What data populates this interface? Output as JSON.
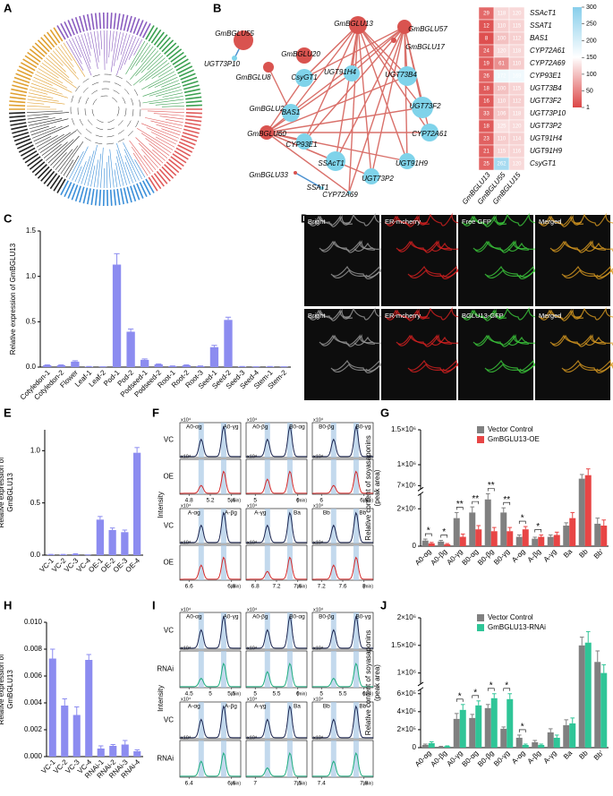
{
  "panels": [
    "A",
    "B",
    "C",
    "D",
    "E",
    "F",
    "G",
    "H",
    "I",
    "J"
  ],
  "network": {
    "nodes": [
      {
        "label": "GmBGLU55",
        "color": "#d9534f"
      },
      {
        "label": "UGT73P10",
        "color": "#7fd3ea"
      },
      {
        "label": "GmBGLU8",
        "color": "#d9534f"
      },
      {
        "label": "GmBGLU20",
        "color": "#d9534f"
      },
      {
        "label": "GmBGLU13",
        "color": "#d9534f"
      },
      {
        "label": "GmBGLU57",
        "color": "#d9534f"
      },
      {
        "label": "GmBGLU17",
        "color": "#d9534f"
      },
      {
        "label": "UGT91H4",
        "color": "#7fd3ea"
      },
      {
        "label": "CsyGT1",
        "color": "#7fd3ea"
      },
      {
        "label": "UGT73B4",
        "color": "#7fd3ea"
      },
      {
        "label": "GmBGLU2",
        "color": "#d9534f"
      },
      {
        "label": "BAS1",
        "color": "#7fd3ea"
      },
      {
        "label": "UGT73F2",
        "color": "#7fd3ea"
      },
      {
        "label": "GmBGLU60",
        "color": "#d9534f"
      },
      {
        "label": "CYP93E1",
        "color": "#7fd3ea"
      },
      {
        "label": "CYP72A61",
        "color": "#7fd3ea"
      },
      {
        "label": "GmBGLU33",
        "color": "#d9534f"
      },
      {
        "label": "SSAcT1",
        "color": "#7fd3ea"
      },
      {
        "label": "UGT91H9",
        "color": "#7fd3ea"
      },
      {
        "label": "SSAT1",
        "color": "#7fd3ea"
      },
      {
        "label": "UGT73P2",
        "color": "#7fd3ea"
      },
      {
        "label": "CYP72A69",
        "color": "#7fd3ea"
      }
    ]
  },
  "heatmap": {
    "rows": [
      "SSAcT1",
      "SSAT1",
      "BAS1",
      "CYP72A61",
      "CYP72A69",
      "CYP93E1",
      "UGT73B4",
      "UGT73F2",
      "UGT73P10",
      "UGT73P2",
      "UGT91H4",
      "UGT91H9",
      "CsyGT1"
    ],
    "columns": [
      "GmBGLU13",
      "GmBGLU55",
      "GmBGLU15"
    ],
    "values": [
      [
        29,
        118,
        120
      ],
      [
        12,
        110,
        115
      ],
      [
        8,
        100,
        112
      ],
      [
        24,
        120,
        118
      ],
      [
        19,
        61,
        110
      ],
      [
        26,
        172,
        169
      ],
      [
        18,
        100,
        115
      ],
      [
        16,
        110,
        112
      ],
      [
        33,
        106,
        118
      ],
      [
        18,
        125,
        120
      ],
      [
        23,
        110,
        114
      ],
      [
        21,
        115,
        116
      ],
      [
        25,
        262,
        120
      ]
    ],
    "colorbar_ticks": [
      300,
      250,
      200,
      150,
      100,
      50,
      1
    ]
  },
  "microscopy": {
    "rows": [
      [
        "Bright",
        "ER-mcherry",
        "Free GFP",
        "Merged"
      ],
      [
        "Bright",
        "ER-mcherry",
        "BGLU13-GFP",
        "Merged"
      ]
    ]
  },
  "chromatograms": [
    {
      "ylabel": "Intensity",
      "scale": "x10⁴",
      "unit": "(min)",
      "series": [
        {
          "name": "VC",
          "color": "#1b2550"
        },
        {
          "name": "OE",
          "color": "#d62a2a"
        }
      ],
      "blocks": [
        {
          "peaks": [
            "A0-αg",
            "A0-γg"
          ],
          "xticks": [
            "4.8",
            "5.2",
            "5.6"
          ]
        },
        {
          "peaks": [
            "A0-βg",
            "B0-αg"
          ],
          "xticks": [
            "5",
            "6"
          ]
        },
        {
          "peaks": [
            "B0-βg",
            "B0-γg"
          ],
          "xticks": [
            "6",
            "6.5"
          ]
        },
        {
          "peaks": [
            "A-αg",
            "A-βg"
          ],
          "xticks": [
            "6.6",
            "6.8"
          ]
        },
        {
          "peaks": [
            "A-γg",
            "Ba"
          ],
          "xticks": [
            "6.8",
            "7.2",
            "7.6"
          ]
        },
        {
          "peaks": [
            "Bb",
            "Bb'"
          ],
          "xticks": [
            "7.2",
            "7.6",
            "8"
          ]
        }
      ]
    },
    {
      "ylabel": "Intensity",
      "scale": "x10⁴",
      "unit": "(min)",
      "series": [
        {
          "name": "VC",
          "color": "#1b2550"
        },
        {
          "name": "RNAi",
          "color": "#1fae80"
        }
      ],
      "blocks": [
        {
          "peaks": [
            "A0-αg",
            "A0-γg"
          ],
          "xticks": [
            "4.5",
            "5",
            "5.5"
          ]
        },
        {
          "peaks": [
            "A0-βg",
            "B0-αg"
          ],
          "xticks": [
            "5",
            "5.5",
            "6"
          ]
        },
        {
          "peaks": [
            "B0-βg",
            "B0-γg"
          ],
          "xticks": [
            "5",
            "5.5",
            "6"
          ]
        },
        {
          "peaks": [
            "A-αg",
            "A-βg"
          ],
          "xticks": [
            "6.4",
            "6.6"
          ]
        },
        {
          "peaks": [
            "A-γg",
            "Ba"
          ],
          "xticks": [
            "7",
            "7.5"
          ]
        },
        {
          "peaks": [
            "Bb",
            "Bb'"
          ],
          "xticks": [
            "7.4",
            "7.8"
          ]
        }
      ]
    }
  ],
  "chart_data": [
    {
      "type": "bar",
      "ylabel": "Relative expression of GmBGLU13",
      "color": "#8c8cf0",
      "categories": [
        "Cotyledon-1",
        "Cotyledon-2",
        "Flower",
        "Leaf-1",
        "Leaf-2",
        "Pod-1",
        "Pod-2",
        "Podseed-1",
        "Podseed-2",
        "Root-1",
        "Root-2",
        "Root-3",
        "Seed-1",
        "Seed-2",
        "Seed-3",
        "Seed-4",
        "Stem-1",
        "Stem-2"
      ],
      "values": [
        0.02,
        0.02,
        0.06,
        0.005,
        0.003,
        1.13,
        0.39,
        0.08,
        0.03,
        0.01,
        0.02,
        0.01,
        0.22,
        0.52,
        0.005,
        0.003,
        0.005,
        0.003
      ],
      "errors": [
        0.005,
        0.005,
        0.01,
        0.002,
        0.001,
        0.12,
        0.03,
        0.01,
        0.005,
        0.003,
        0.005,
        0.003,
        0.02,
        0.03,
        0.002,
        0.001,
        0.002,
        0.001
      ],
      "ylim": [
        0,
        1.5
      ],
      "yticks": [
        {
          "value": 0,
          "label": "0.0"
        },
        0.5,
        {
          "value": 1,
          "label": "1.0"
        },
        1.5
      ]
    },
    {
      "type": "bar",
      "ylabel": [
        "Relative expression of",
        "GmBGLU13"
      ],
      "color": "#8c8cf0",
      "categories": [
        "VC-1",
        "VC-2",
        "VC-3",
        "VC-4",
        "OE-1",
        "OE-2",
        "OE-3",
        "OE-4"
      ],
      "values": [
        0.005,
        0.005,
        0.01,
        0.002,
        0.34,
        0.24,
        0.22,
        0.98
      ],
      "errors": [
        0.002,
        0.002,
        0.003,
        0.001,
        0.03,
        0.02,
        0.02,
        0.05
      ],
      "ylim": [
        0,
        1.2
      ],
      "yticks": [
        {
          "value": 0,
          "label": "0.0"
        },
        0.5,
        {
          "value": 1,
          "label": "1.0"
        }
      ]
    },
    {
      "type": "grouped_bar",
      "ylabel": [
        "Relative content of soyasaponins",
        "(peak area)"
      ],
      "legend": "upper right",
      "categories": [
        "A0-αg",
        "A0-βg",
        "A0-γg",
        "B0-αg",
        "B0-βg",
        "B0-γg",
        "A-αg",
        "A-βg",
        "A-γg",
        "Ba",
        "Bb",
        "Bb'"
      ],
      "series": [
        {
          "name": "Vector Control",
          "color": "#808080",
          "values": [
            30000,
            25000,
            150000,
            180000,
            250000,
            180000,
            50000,
            40000,
            50000,
            110000,
            800000,
            120000
          ],
          "errors": [
            8000,
            6000,
            30000,
            30000,
            30000,
            25000,
            10000,
            8000,
            10000,
            15000,
            60000,
            30000
          ]
        },
        {
          "name": "GmBGLU13-OE",
          "color": "#e84545",
          "values": [
            15000,
            10000,
            50000,
            90000,
            80000,
            80000,
            90000,
            50000,
            60000,
            150000,
            850000,
            110000
          ],
          "errors": [
            5000,
            4000,
            15000,
            20000,
            20000,
            20000,
            15000,
            10000,
            15000,
            30000,
            90000,
            30000
          ]
        }
      ],
      "significance": [
        "*",
        "*",
        "**",
        "**",
        "**",
        "**",
        "*",
        "*",
        null,
        null,
        null,
        null
      ],
      "ylim": [
        0,
        1500000
      ],
      "ybreak": [
        280000,
        650000
      ],
      "yticks": [
        0,
        {
          "value": 200000,
          "label": "2×10⁵"
        },
        {
          "value": 700000,
          "label": "7×10⁵"
        },
        {
          "value": 1000000,
          "label": "1×10⁶"
        },
        {
          "value": 1500000,
          "label": "1.5×10⁶"
        }
      ]
    },
    {
      "type": "bar",
      "ylabel": [
        "Relative expression of",
        "GmBGLU13"
      ],
      "color": "#8c8cf0",
      "categories": [
        "VC-1",
        "VC-2",
        "VC-3",
        "VC-4",
        "RNAi-1",
        "RNAi-2",
        "RNAi-3",
        "RNAi-4"
      ],
      "values": [
        0.0073,
        0.0038,
        0.0031,
        0.0072,
        0.0006,
        0.0008,
        0.0009,
        0.0004
      ],
      "errors": [
        0.0007,
        0.0005,
        0.0006,
        0.0004,
        0.0002,
        0.0001,
        0.0003,
        0.0001
      ],
      "ylim": [
        0,
        0.01
      ],
      "yticks": [
        {
          "value": 0,
          "label": "0.000"
        },
        {
          "value": 0.002,
          "label": "0.002"
        },
        {
          "value": 0.004,
          "label": "0.004"
        },
        {
          "value": 0.006,
          "label": "0.006"
        },
        {
          "value": 0.008,
          "label": "0.008"
        },
        {
          "value": 0.01,
          "label": "0.010"
        }
      ]
    },
    {
      "type": "grouped_bar",
      "ylabel": [
        "Relative content of soyasaponins",
        "(peak area)"
      ],
      "legend": "upper right",
      "categories": [
        "A0-αg",
        "A0-βg",
        "A0-γg",
        "B0-αg",
        "B0-βg",
        "B0-γg",
        "A-αg",
        "A-βg",
        "A-γg",
        "Ba",
        "Bb",
        "Bb'"
      ],
      "series": [
        {
          "name": "Vector Control",
          "color": "#808080",
          "values": [
            30000,
            10000,
            320000,
            330000,
            440000,
            210000,
            110000,
            60000,
            170000,
            250000,
            1500000,
            1200000
          ],
          "errors": [
            10000,
            5000,
            60000,
            40000,
            40000,
            20000,
            30000,
            20000,
            40000,
            60000,
            150000,
            200000
          ]
        },
        {
          "name": "GmBGLU13-RNAi",
          "color": "#2fc597",
          "values": [
            50000,
            15000,
            420000,
            470000,
            550000,
            540000,
            30000,
            30000,
            110000,
            270000,
            1550000,
            1000000
          ],
          "errors": [
            15000,
            5000,
            60000,
            50000,
            50000,
            60000,
            10000,
            10000,
            30000,
            60000,
            200000,
            150000
          ]
        }
      ],
      "significance": [
        null,
        null,
        "*",
        "*",
        "*",
        "*",
        "*",
        null,
        null,
        null,
        null,
        null
      ],
      "ylim": [
        0,
        2000000
      ],
      "ybreak": [
        650000,
        800000
      ],
      "yticks": [
        0,
        {
          "value": 200000,
          "label": "2×10⁵"
        },
        {
          "value": 400000,
          "label": "4×10⁵"
        },
        {
          "value": 600000,
          "label": "6×10⁵"
        },
        {
          "value": 1000000,
          "label": "1×10⁶"
        },
        {
          "value": 1500000,
          "label": "1.5×10⁶"
        },
        {
          "value": 2000000,
          "label": "2×10⁶"
        }
      ]
    }
  ]
}
